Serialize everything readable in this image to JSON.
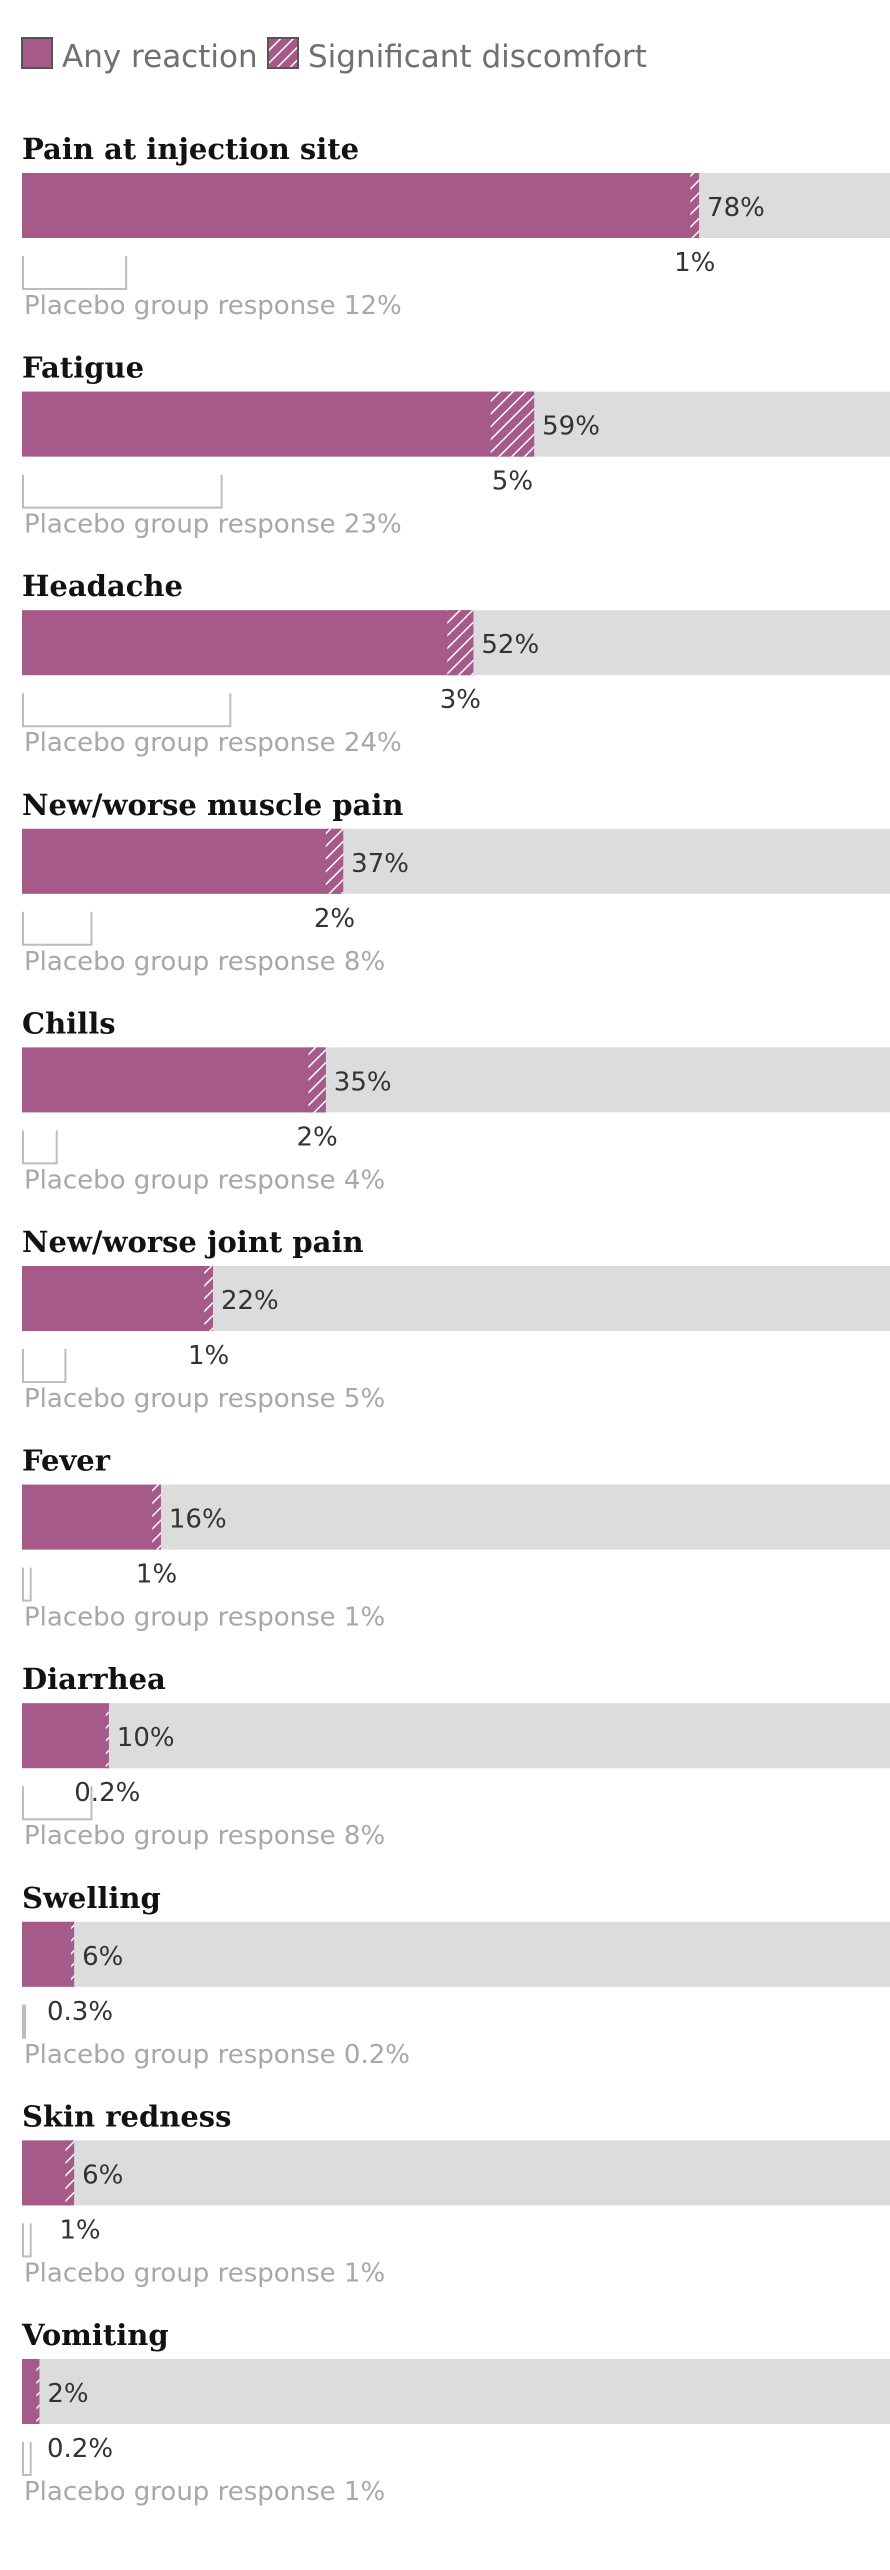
{
  "colors": {
    "any_reaction": "#a65a89",
    "track": "#dcdcdc",
    "placebo_outline": "#bdbdbd",
    "hatch_line": "#ffffff"
  },
  "legend": {
    "any_reaction": "Any reaction",
    "significant_discomfort": "Significant discomfort"
  },
  "chart_data": {
    "type": "bar",
    "orientation": "horizontal",
    "xlim": [
      0,
      100
    ],
    "unit": "%",
    "legend_placement": "top-left",
    "placebo_prefix": "Placebo group response",
    "categories": [
      "Pain at injection site",
      "Fatigue",
      "Headache",
      "New/worse muscle pain",
      "Chills",
      "New/worse joint pain",
      "Fever",
      "Diarrhea",
      "Swelling",
      "Skin redness",
      "Vomiting"
    ],
    "series": [
      {
        "name": "Any reaction",
        "values": [
          78,
          59,
          52,
          37,
          35,
          22,
          16,
          10,
          6,
          6,
          2
        ]
      },
      {
        "name": "Significant discomfort",
        "values": [
          1,
          5,
          3,
          2,
          2,
          1,
          1,
          0.2,
          0.3,
          1,
          0.2
        ]
      },
      {
        "values": [
          12,
          23,
          24,
          8,
          4,
          5,
          1,
          8,
          0.2,
          1,
          1
        ]
      }
    ],
    "value_labels": [
      "78%",
      "59%",
      "52%",
      "37%",
      "35%",
      "22%",
      "16%",
      "10%",
      "6%",
      "6%",
      "2%"
    ],
    "discomfort_labels": [
      "1%",
      "5%",
      "3%",
      "2%",
      "2%",
      "1%",
      "1%",
      "0.2%",
      "0.3%",
      "1%",
      "0.2%"
    ],
    "placebo_labels": [
      "12%",
      "23%",
      "24%",
      "8%",
      "4%",
      "5%",
      "1%",
      "8%",
      "0.2%",
      "1%",
      "1%"
    ]
  }
}
